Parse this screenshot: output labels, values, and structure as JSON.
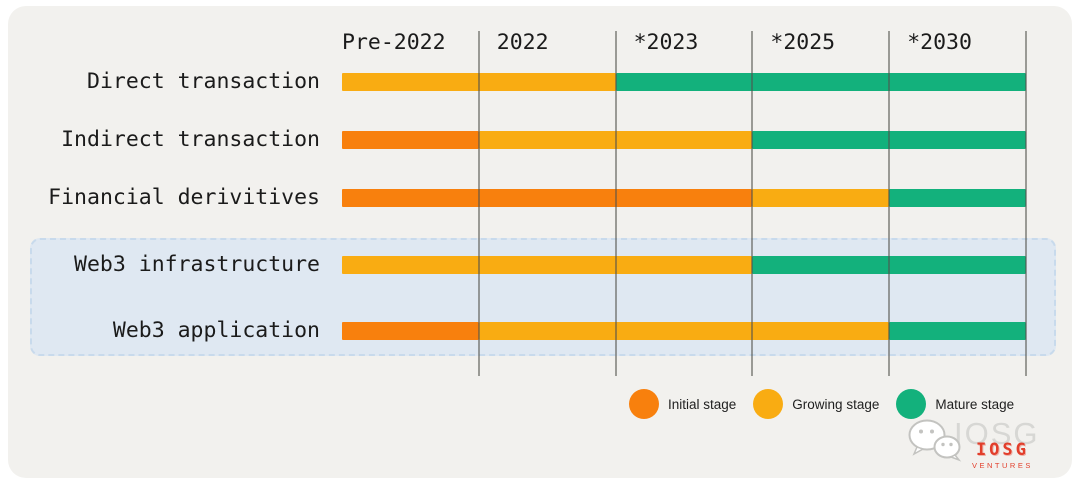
{
  "chart_data": {
    "type": "bar",
    "subtype": "horizontal-maturity-timeline",
    "title": "",
    "x_ticks": [
      "Pre-2022",
      "2022",
      "*2023",
      "*2025",
      "*2030"
    ],
    "x_range_cols": [
      0,
      5
    ],
    "grid": true,
    "stage_colors": {
      "initial": "#F8800D",
      "growing": "#F9AC12",
      "mature": "#13B17C"
    },
    "legend": [
      {
        "key": "initial",
        "label": "Initial stage"
      },
      {
        "key": "growing",
        "label": "Growing stage"
      },
      {
        "key": "mature",
        "label": "Mature stage"
      }
    ],
    "legend_position": "bottom-right",
    "rows": [
      {
        "category": "Direct transaction",
        "highlighted": false,
        "segments": [
          {
            "stage": "growing",
            "from_col": 0,
            "to_col": 2,
            "period": "Pre-2022 to 2022"
          },
          {
            "stage": "mature",
            "from_col": 2,
            "to_col": 5,
            "period": "*2023 to *2030"
          }
        ]
      },
      {
        "category": "Indirect transaction",
        "highlighted": false,
        "segments": [
          {
            "stage": "initial",
            "from_col": 0,
            "to_col": 1,
            "period": "Pre-2022"
          },
          {
            "stage": "growing",
            "from_col": 1,
            "to_col": 3,
            "period": "2022 to *2023"
          },
          {
            "stage": "mature",
            "from_col": 3,
            "to_col": 5,
            "period": "*2025 to *2030"
          }
        ]
      },
      {
        "category": "Financial derivitives",
        "highlighted": false,
        "segments": [
          {
            "stage": "initial",
            "from_col": 0,
            "to_col": 3,
            "period": "Pre-2022 to *2023"
          },
          {
            "stage": "growing",
            "from_col": 3,
            "to_col": 4,
            "period": "*2025"
          },
          {
            "stage": "mature",
            "from_col": 4,
            "to_col": 5,
            "period": "*2030"
          }
        ]
      },
      {
        "category": "Web3 infrastructure",
        "highlighted": true,
        "segments": [
          {
            "stage": "growing",
            "from_col": 0,
            "to_col": 3,
            "period": "Pre-2022 to *2023"
          },
          {
            "stage": "mature",
            "from_col": 3,
            "to_col": 5,
            "period": "*2025 to *2030"
          }
        ]
      },
      {
        "category": "Web3 application",
        "highlighted": true,
        "segments": [
          {
            "stage": "initial",
            "from_col": 0,
            "to_col": 1,
            "period": "Pre-2022"
          },
          {
            "stage": "growing",
            "from_col": 1,
            "to_col": 4,
            "period": "2022 to *2025"
          },
          {
            "stage": "mature",
            "from_col": 4,
            "to_col": 5,
            "period": "*2030"
          }
        ]
      }
    ]
  },
  "watermark": {
    "brand_gray": "IOSG",
    "brand_red": "IOSG",
    "brand_sub": "VENTURES",
    "icon": "wechat-icon",
    "red_color": "#E23E2B",
    "gray_color": "#D7D7D4"
  },
  "colors": {
    "canvas_bg": "#FFFFFF",
    "panel_bg": "#F2F1EE",
    "highlight_box_bg": "#DFE8F2",
    "highlight_box_border": "#C8DAEC",
    "gridline": "#8F8F8B",
    "text": "#1B1B1B"
  }
}
